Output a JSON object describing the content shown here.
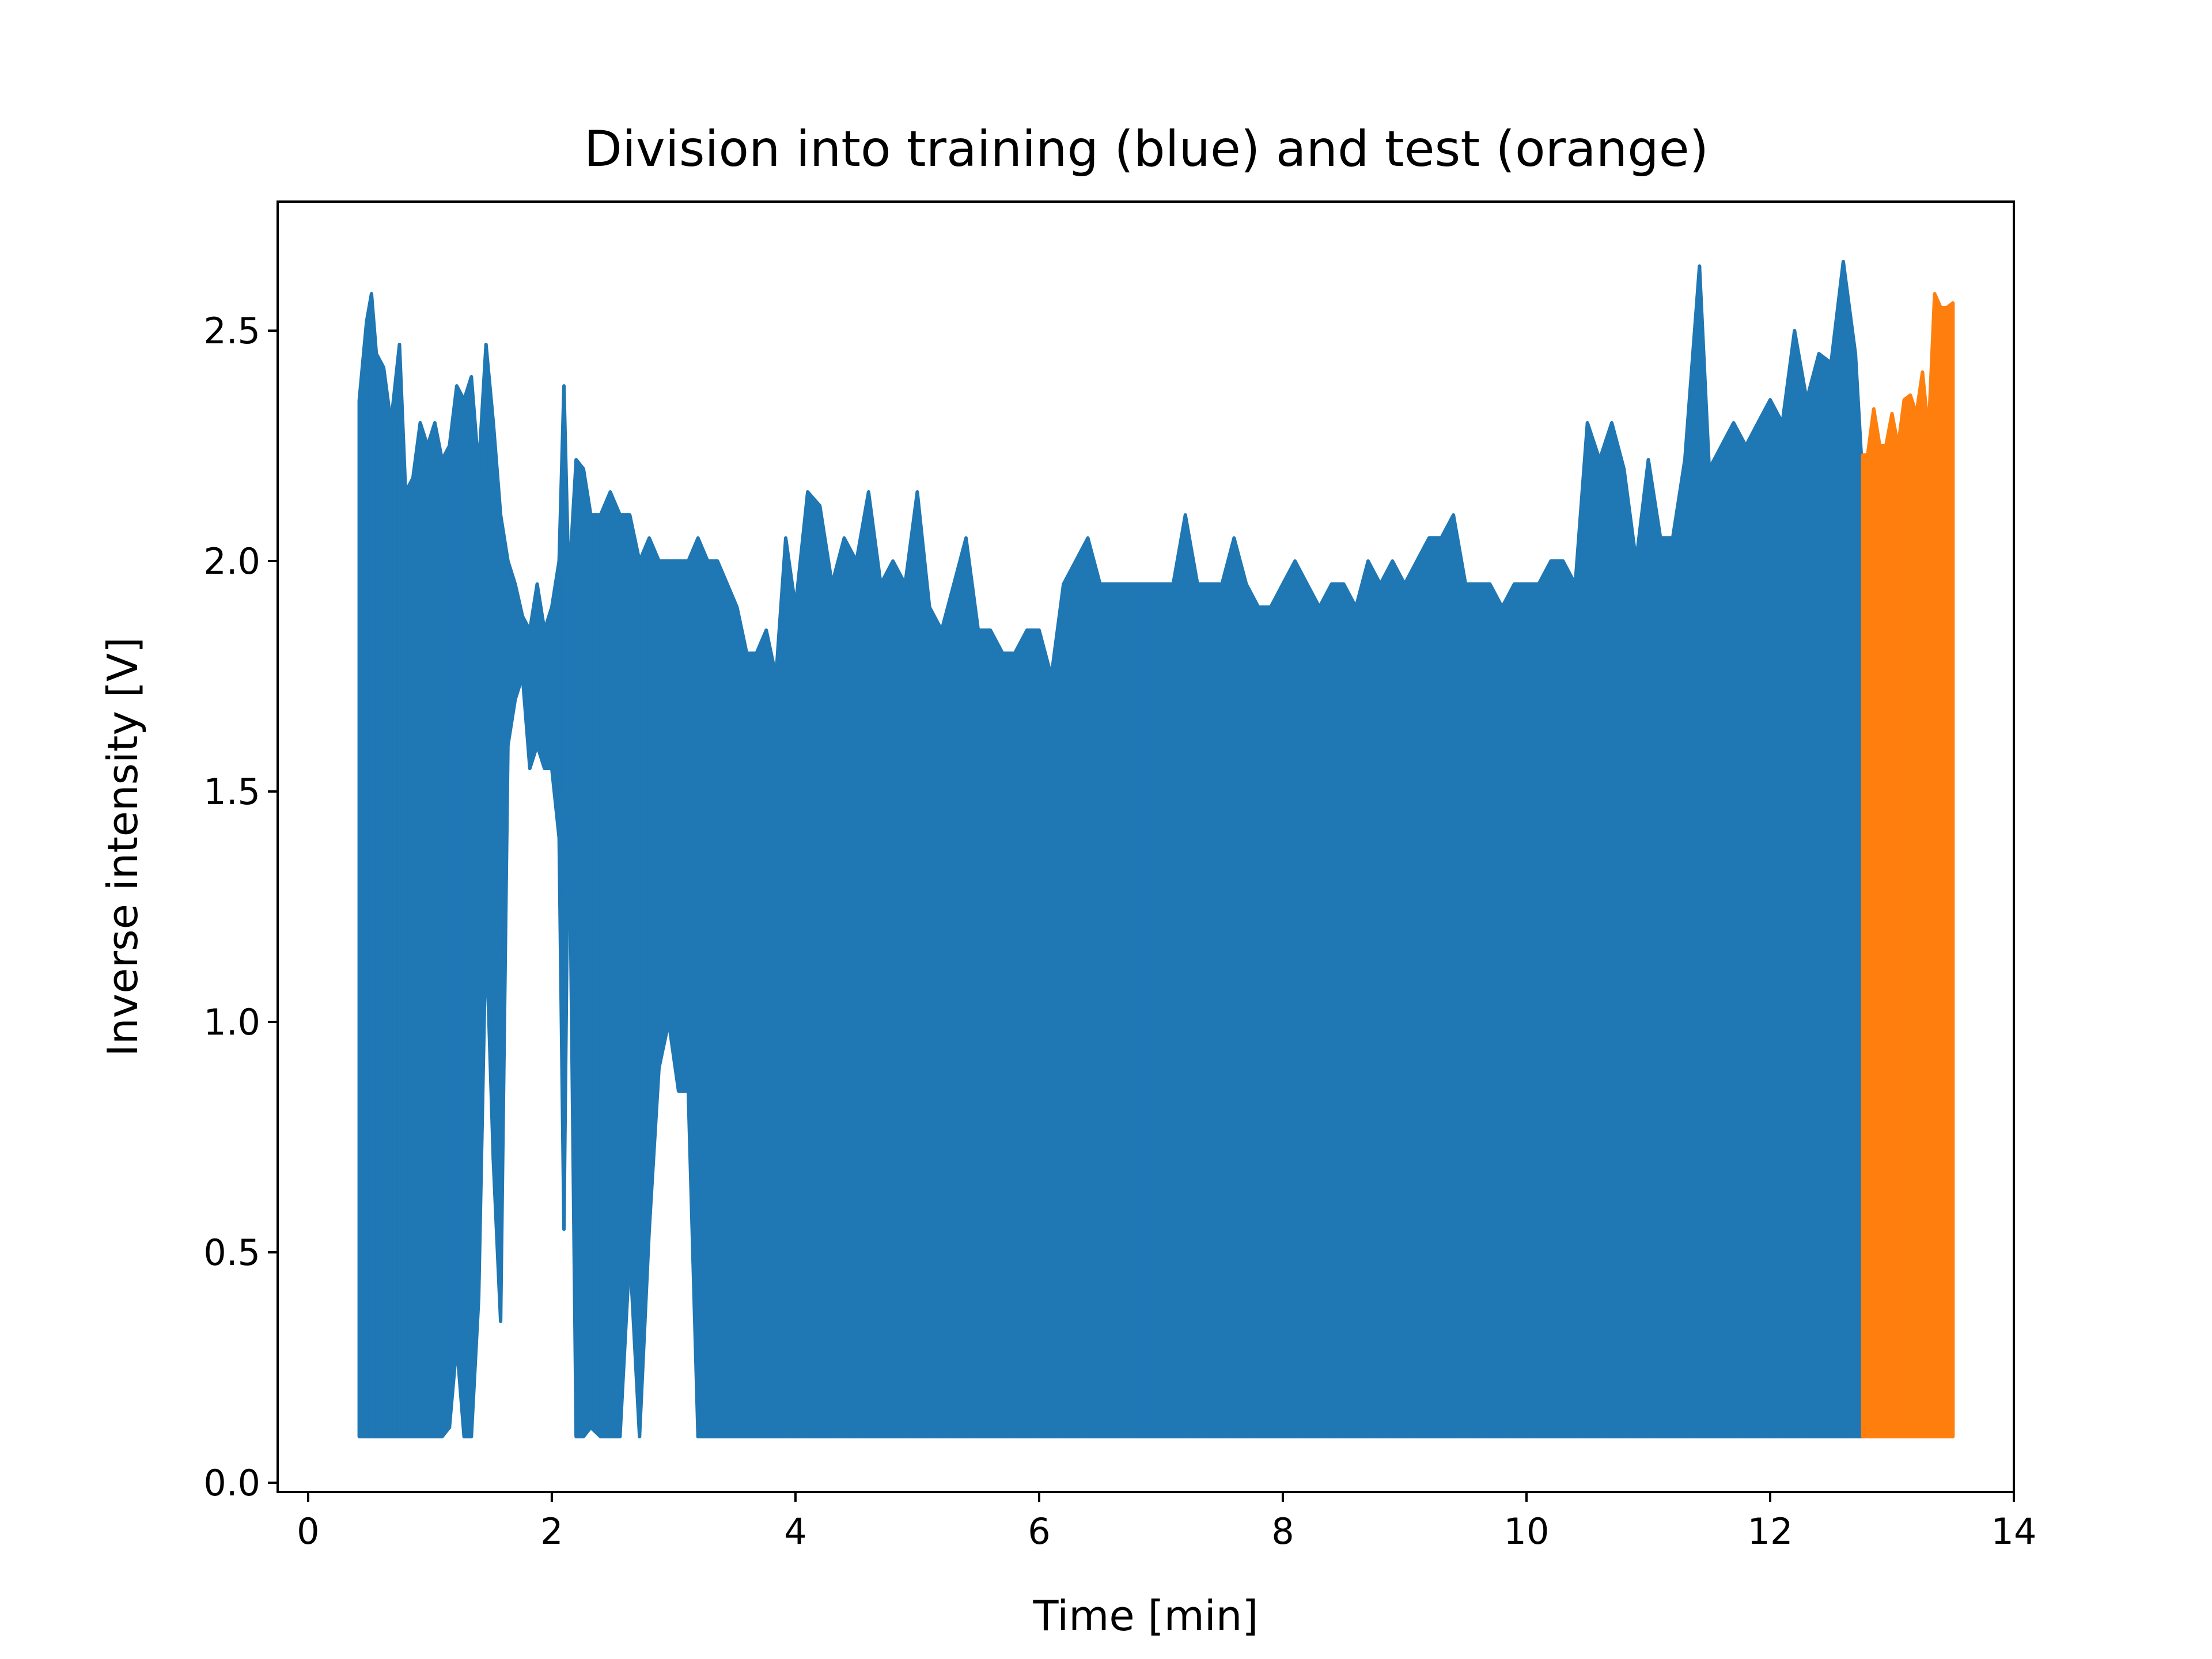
{
  "chart_data": {
    "type": "line",
    "title": "Division into training (blue) and test (orange)",
    "xlabel": "Time [min]",
    "ylabel": "Inverse intensity [V]",
    "xlim": [
      -0.25,
      14.0
    ],
    "ylim": [
      -0.02,
      2.78
    ],
    "xticks": [
      0,
      2,
      4,
      6,
      8,
      10,
      12,
      14
    ],
    "xtick_labels": [
      "0",
      "2",
      "4",
      "6",
      "8",
      "10",
      "12",
      "14"
    ],
    "yticks": [
      0.0,
      0.5,
      1.0,
      1.5,
      2.0,
      2.5
    ],
    "ytick_labels": [
      "0.0",
      "0.5",
      "1.0",
      "1.5",
      "2.0",
      "2.5"
    ],
    "grid": false,
    "legend": false,
    "colors": {
      "training": "#1f77b4",
      "test": "#ff7f0e"
    },
    "series": [
      {
        "x": [
          0.42,
          0.48,
          0.52,
          0.56,
          0.62,
          0.68,
          0.75,
          0.8,
          0.86,
          0.92,
          0.98,
          1.04,
          1.1,
          1.16,
          1.22,
          1.28,
          1.34,
          1.4,
          1.46,
          1.52,
          1.58,
          1.64,
          1.7,
          1.76,
          1.82,
          1.88,
          1.94,
          2.0,
          2.06,
          2.1,
          2.14,
          2.2,
          2.26,
          2.32,
          2.4,
          2.48,
          2.56,
          2.64,
          2.72,
          2.8,
          2.88,
          2.96,
          3.04,
          3.12,
          3.2,
          3.28,
          3.36,
          3.44,
          3.52,
          3.6,
          3.68,
          3.76,
          3.84,
          3.92,
          4.0,
          4.1,
          4.2,
          4.3,
          4.4,
          4.5,
          4.6,
          4.7,
          4.8,
          4.9,
          5.0,
          5.1,
          5.2,
          5.3,
          5.4,
          5.5,
          5.6,
          5.7,
          5.8,
          5.9,
          6.0,
          6.1,
          6.2,
          6.3,
          6.4,
          6.5,
          6.6,
          6.7,
          6.8,
          6.9,
          7.0,
          7.1,
          7.2,
          7.3,
          7.4,
          7.5,
          7.6,
          7.7,
          7.8,
          7.9,
          8.0,
          8.1,
          8.2,
          8.3,
          8.4,
          8.5,
          8.6,
          8.7,
          8.8,
          8.9,
          9.0,
          9.1,
          9.2,
          9.3,
          9.4,
          9.5,
          9.6,
          9.7,
          9.8,
          9.9,
          10.0,
          10.1,
          10.2,
          10.3,
          10.4,
          10.5,
          10.6,
          10.7,
          10.8,
          10.9,
          11.0,
          11.1,
          11.2,
          11.3,
          11.42,
          11.5,
          11.6,
          11.7,
          11.8,
          11.9,
          12.0,
          12.1,
          12.2,
          12.3,
          12.4,
          12.5,
          12.6,
          12.7,
          12.75
        ],
        "min": [
          0.1,
          0.1,
          0.1,
          0.1,
          0.1,
          0.1,
          0.1,
          0.1,
          0.1,
          0.1,
          0.1,
          0.1,
          0.1,
          0.12,
          0.3,
          0.1,
          0.1,
          0.4,
          1.2,
          0.7,
          0.35,
          1.6,
          1.7,
          1.75,
          1.55,
          1.6,
          1.55,
          1.55,
          1.4,
          0.55,
          1.55,
          0.1,
          0.1,
          0.12,
          0.1,
          0.1,
          0.1,
          0.5,
          0.1,
          0.55,
          0.9,
          1.0,
          0.85,
          0.85,
          0.1,
          0.1,
          0.1,
          0.1,
          0.1,
          0.1,
          0.1,
          0.1,
          0.1,
          0.1,
          0.1,
          0.1,
          0.1,
          0.1,
          0.1,
          0.1,
          0.1,
          0.1,
          0.1,
          0.1,
          0.1,
          0.1,
          0.1,
          0.1,
          0.1,
          0.1,
          0.1,
          0.1,
          0.1,
          0.1,
          0.1,
          0.1,
          0.1,
          0.1,
          0.1,
          0.1,
          0.1,
          0.1,
          0.1,
          0.1,
          0.1,
          0.1,
          0.1,
          0.1,
          0.1,
          0.1,
          0.1,
          0.1,
          0.1,
          0.1,
          0.1,
          0.1,
          0.1,
          0.1,
          0.1,
          0.1,
          0.1,
          0.1,
          0.1,
          0.1,
          0.1,
          0.1,
          0.1,
          0.1,
          0.1,
          0.1,
          0.1,
          0.1,
          0.1,
          0.1,
          0.1,
          0.1,
          0.1,
          0.1,
          0.1,
          0.1,
          0.1,
          0.1,
          0.1,
          0.1,
          0.1,
          0.1,
          0.1,
          0.1,
          0.1,
          0.1,
          0.1,
          0.1,
          0.1,
          0.1,
          0.1,
          0.1,
          0.1,
          0.1,
          0.1,
          0.1,
          0.1,
          0.1,
          0.1
        ],
        "max": [
          2.35,
          2.52,
          2.58,
          2.45,
          2.42,
          2.3,
          2.47,
          2.15,
          2.18,
          2.3,
          2.25,
          2.3,
          2.22,
          2.25,
          2.38,
          2.35,
          2.4,
          2.2,
          2.47,
          2.3,
          2.1,
          2.0,
          1.95,
          1.88,
          1.85,
          1.95,
          1.85,
          1.9,
          2.0,
          2.38,
          1.95,
          2.22,
          2.2,
          2.1,
          2.1,
          2.15,
          2.1,
          2.1,
          2.0,
          2.05,
          2.0,
          2.0,
          2.0,
          2.0,
          2.05,
          2.0,
          2.0,
          1.95,
          1.9,
          1.8,
          1.8,
          1.85,
          1.75,
          2.05,
          1.9,
          2.15,
          2.12,
          1.95,
          2.05,
          2.0,
          2.15,
          1.95,
          2.0,
          1.95,
          2.15,
          1.9,
          1.85,
          1.95,
          2.05,
          1.85,
          1.85,
          1.8,
          1.8,
          1.85,
          1.85,
          1.75,
          1.95,
          2.0,
          2.05,
          1.95,
          1.95,
          1.95,
          1.95,
          1.95,
          1.95,
          1.95,
          2.1,
          1.95,
          1.95,
          1.95,
          2.05,
          1.95,
          1.9,
          1.9,
          1.95,
          2.0,
          1.95,
          1.9,
          1.95,
          1.95,
          1.9,
          2.0,
          1.95,
          2.0,
          1.95,
          2.0,
          2.05,
          2.05,
          2.1,
          1.95,
          1.95,
          1.95,
          1.9,
          1.95,
          1.95,
          1.95,
          2.0,
          2.0,
          1.95,
          2.3,
          2.22,
          2.3,
          2.2,
          2.0,
          2.22,
          2.05,
          2.05,
          2.22,
          2.64,
          2.2,
          2.25,
          2.3,
          2.25,
          2.3,
          2.35,
          2.3,
          2.5,
          2.35,
          2.45,
          2.43,
          2.65,
          2.45,
          2.22
        ],
        "color": "#1f77b4"
      },
      {
        "x": [
          12.76,
          12.8,
          12.85,
          12.9,
          12.95,
          13.0,
          13.05,
          13.1,
          13.15,
          13.2,
          13.25,
          13.3,
          13.35,
          13.4,
          13.45,
          13.5
        ],
        "min": [
          0.1,
          0.1,
          0.1,
          0.1,
          0.1,
          0.1,
          0.1,
          0.1,
          0.1,
          0.1,
          0.1,
          0.1,
          0.1,
          0.1,
          0.1,
          0.1
        ],
        "max": [
          2.23,
          2.23,
          2.33,
          2.25,
          2.25,
          2.32,
          2.25,
          2.35,
          2.36,
          2.32,
          2.41,
          2.28,
          2.58,
          2.55,
          2.55,
          2.56
        ],
        "color": "#ff7f0e"
      }
    ]
  }
}
